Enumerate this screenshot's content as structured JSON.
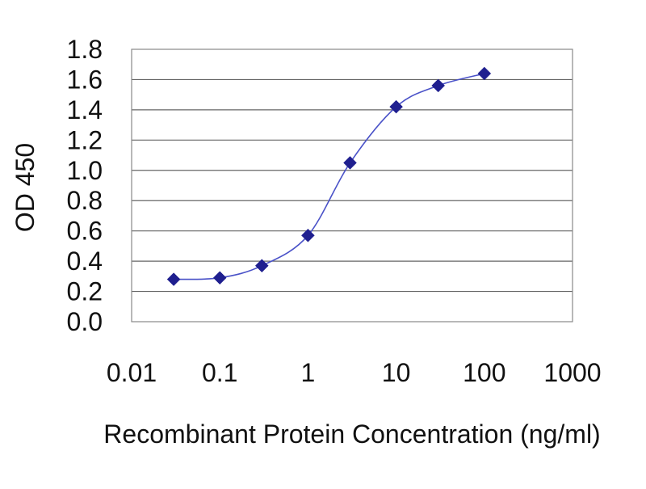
{
  "chart_data": {
    "type": "scatter",
    "title": "",
    "xlabel": "Recombinant Protein Concentration (ng/ml)",
    "ylabel": "OD 450",
    "x_scale": "log",
    "xlim": [
      0.01,
      1000
    ],
    "ylim": [
      0.0,
      1.8
    ],
    "x_ticks": [
      0.01,
      0.1,
      1,
      10,
      100,
      1000
    ],
    "x_tick_labels": [
      "0.01",
      "0.1",
      "1",
      "10",
      "100",
      "1000"
    ],
    "y_ticks": [
      0.0,
      0.2,
      0.4,
      0.6,
      0.8,
      1.0,
      1.2,
      1.4,
      1.6,
      1.8
    ],
    "y_tick_labels": [
      "0.0",
      "0.2",
      "0.4",
      "0.6",
      "0.8",
      "1.0",
      "1.2",
      "1.4",
      "1.6",
      "1.8"
    ],
    "grid": "horizontal",
    "legend": "none",
    "series": [
      {
        "marker": "diamond",
        "fit": "sigmoid",
        "color": "#1f1f8f",
        "line_color": "#4a52c8",
        "points": [
          {
            "x": 0.03,
            "y": 0.28
          },
          {
            "x": 0.1,
            "y": 0.29
          },
          {
            "x": 0.3,
            "y": 0.37
          },
          {
            "x": 1,
            "y": 0.57
          },
          {
            "x": 3,
            "y": 1.05
          },
          {
            "x": 10,
            "y": 1.42
          },
          {
            "x": 30,
            "y": 1.56
          },
          {
            "x": 100,
            "y": 1.64
          }
        ]
      }
    ]
  },
  "colors": {
    "background": "#ffffff",
    "plot_border": "#888888",
    "grid": "#666666"
  }
}
